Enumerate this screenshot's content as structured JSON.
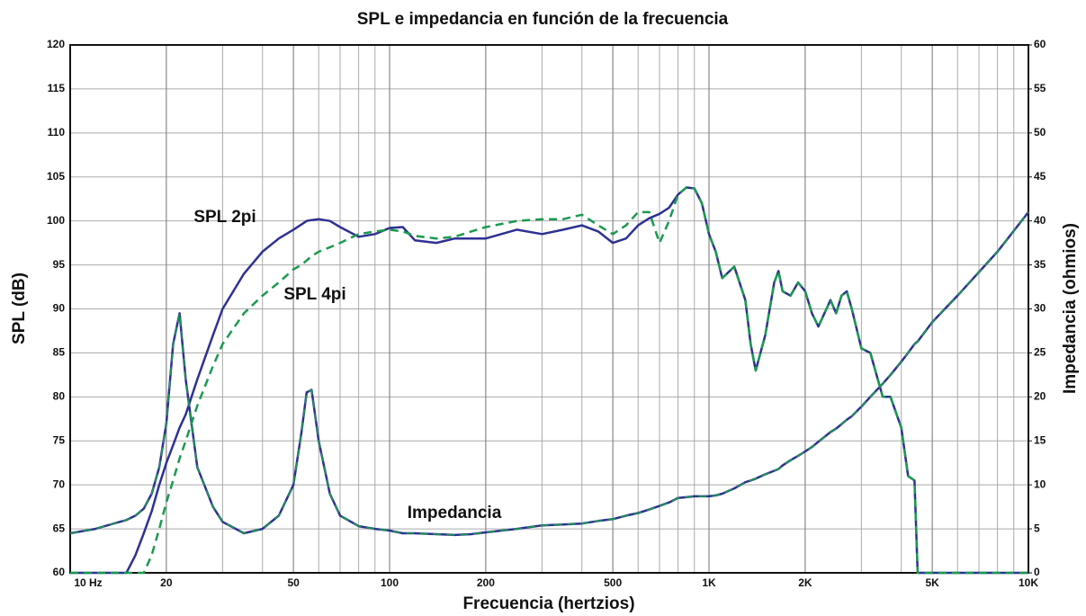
{
  "chart_data": {
    "type": "line",
    "title": "SPL e impedancia en función de la frecuencia",
    "xlabel": "Frecuencia (hertzios)",
    "ylabel": "SPL (dB)",
    "y2label": "Impedancia (ohmios)",
    "xscale": "log",
    "grid": true,
    "xlim": [
      10,
      10000
    ],
    "xticks": [
      {
        "value": 10,
        "label": "10 Hz"
      },
      20,
      50,
      100,
      200,
      500,
      {
        "value": 1000,
        "label": "1K"
      },
      {
        "value": 2000,
        "label": "2K"
      },
      {
        "value": 5000,
        "label": "5K"
      },
      {
        "value": 10000,
        "label": "10K"
      }
    ],
    "xminorticks": [
      30,
      40,
      60,
      70,
      80,
      90,
      300,
      400,
      600,
      700,
      800,
      900,
      3000,
      4000,
      6000,
      7000,
      8000,
      9000
    ],
    "ylim": [
      60,
      120
    ],
    "yticks": [
      60,
      65,
      70,
      75,
      80,
      85,
      90,
      95,
      100,
      105,
      110,
      115,
      120
    ],
    "y2lim": [
      0,
      60
    ],
    "y2ticks": [
      0,
      5,
      10,
      15,
      20,
      25,
      30,
      35,
      40,
      45,
      50,
      55,
      60
    ],
    "x": [
      10,
      12,
      14,
      15,
      16,
      17,
      18,
      19,
      20,
      21,
      22,
      23,
      25,
      28,
      30,
      35,
      40,
      45,
      50,
      53,
      55,
      57,
      60,
      65,
      70,
      80,
      90,
      100,
      110,
      120,
      140,
      160,
      180,
      200,
      250,
      300,
      350,
      400,
      450,
      500,
      550,
      600,
      650,
      700,
      750,
      800,
      850,
      900,
      950,
      1000,
      1050,
      1100,
      1200,
      1300,
      1350,
      1400,
      1500,
      1600,
      1650,
      1700,
      1800,
      1900,
      2000,
      2100,
      2200,
      2400,
      2500,
      2600,
      2700,
      2800,
      3000,
      3200,
      3500,
      3700,
      4000,
      4200,
      4400,
      4500,
      5000,
      6000,
      8000,
      10000
    ],
    "series": [
      {
        "name": "SPL 2pi",
        "color": "#2e3192",
        "axis": "y",
        "values": [
          60,
          60,
          60,
          60,
          62,
          64.5,
          67,
          70,
          72.5,
          74.5,
          76.5,
          78,
          82,
          87,
          90,
          94,
          96.5,
          98,
          99,
          99.6,
          100,
          100.1,
          100.2,
          100,
          99.3,
          98.2,
          98.5,
          99.2,
          99.3,
          97.8,
          97.5,
          98,
          98,
          98,
          99,
          98.5,
          99,
          99.5,
          98.8,
          97.5,
          98,
          99.5,
          100.3,
          100.8,
          101.5,
          103,
          103.8,
          103.7,
          102,
          98.5,
          96.5,
          93.5,
          94.8,
          91,
          86,
          83,
          87,
          93,
          94.3,
          92,
          91.5,
          93,
          92,
          89.5,
          88,
          91,
          89.5,
          91.5,
          92,
          90,
          85.5,
          85,
          80,
          80,
          76.5,
          71,
          70.5,
          60,
          60,
          60,
          60,
          60
        ]
      },
      {
        "name": "SPL 4pi",
        "color": "#1a9a50",
        "dashed": true,
        "axis": "y",
        "values": [
          60,
          60,
          60,
          60,
          60,
          60,
          62,
          65,
          68,
          70.5,
          73,
          75,
          79,
          83.5,
          86,
          89.5,
          91.5,
          93,
          94.5,
          95,
          95.5,
          96,
          96.5,
          97,
          97.5,
          98.5,
          98.8,
          99,
          98.8,
          98.3,
          98,
          98.2,
          98.8,
          99.3,
          100,
          100.2,
          100.2,
          100.7,
          99.5,
          98.5,
          99.5,
          101,
          101,
          97.5,
          100,
          103,
          103.8,
          103.7,
          102,
          98.5,
          96.5,
          93.5,
          94.8,
          91,
          86,
          83,
          87,
          93,
          94.3,
          92,
          91.5,
          93,
          92,
          89.5,
          88,
          91,
          89.5,
          91.5,
          92,
          90,
          85.5,
          85,
          80,
          80,
          76.5,
          71,
          70.5,
          60,
          60,
          60,
          60,
          60
        ]
      },
      {
        "name": "Impedancia",
        "color": "#2e3192",
        "dash_color": "#1a9a50",
        "axis": "y2",
        "values": [
          4.5,
          5,
          5.7,
          6,
          6.5,
          7.3,
          9,
          12,
          17,
          26,
          29.5,
          22,
          12,
          7.5,
          5.8,
          4.5,
          5,
          6.5,
          10,
          16,
          20.5,
          20.8,
          15,
          9,
          6.5,
          5.3,
          5,
          4.8,
          4.5,
          4.5,
          4.4,
          4.3,
          4.4,
          4.6,
          5,
          5.4,
          5.5,
          5.6,
          5.9,
          6.1,
          6.5,
          6.8,
          7.2,
          7.6,
          8,
          8.5,
          8.6,
          8.7,
          8.7,
          8.7,
          8.8,
          9,
          9.6,
          10.3,
          10.5,
          10.7,
          11.2,
          11.6,
          11.8,
          12.2,
          12.8,
          13.3,
          13.8,
          14.3,
          14.9,
          16,
          16.4,
          16.9,
          17.4,
          17.8,
          18.9,
          20,
          21.5,
          22.5,
          24,
          25,
          26,
          26.3,
          28.5,
          31.5,
          36.5,
          41
        ]
      }
    ]
  }
}
